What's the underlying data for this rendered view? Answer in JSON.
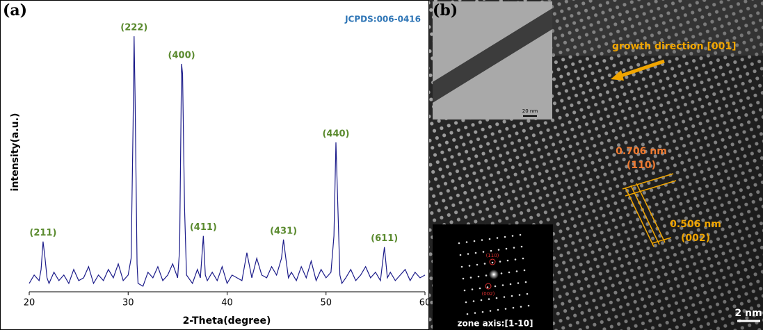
{
  "chart_data": {
    "type": "line",
    "panel_label": "(a)",
    "annotation": "JCPDS:006-0416",
    "xlabel": "2-Theta(degree)",
    "ylabel": "intensity(a.u.)",
    "xlim": [
      20,
      60
    ],
    "xticks": [
      20,
      30,
      40,
      50,
      60
    ],
    "ylim": [
      0,
      100
    ],
    "color": "#1c1c8a",
    "x": [
      20,
      20.5,
      21,
      21.2,
      21.4,
      21.6,
      21.8,
      22,
      22.5,
      23,
      23.5,
      24,
      24.5,
      25,
      25.5,
      26,
      26.5,
      27,
      27.5,
      28,
      28.5,
      29,
      29.5,
      30,
      30.3,
      30.5,
      30.6,
      30.7,
      30.9,
      31,
      31.5,
      32,
      32.5,
      33,
      33.5,
      34,
      34.5,
      35,
      35.2,
      35.4,
      35.5,
      35.7,
      35.9,
      36.5,
      37,
      37.3,
      37.6,
      37.8,
      38,
      38.5,
      39,
      39.5,
      40,
      40.5,
      41,
      41.5,
      42,
      42.5,
      43,
      43.5,
      44,
      44.5,
      45,
      45.5,
      45.7,
      45.9,
      46.2,
      46.5,
      47,
      47.5,
      48,
      48.5,
      49,
      49.5,
      50,
      50.5,
      50.8,
      51,
      51.2,
      51.4,
      51.6,
      52,
      52.5,
      53,
      53.5,
      54,
      54.5,
      55,
      55.5,
      55.9,
      56.2,
      56.5,
      57,
      57.5,
      58,
      58.5,
      59,
      59.5,
      60
    ],
    "values": [
      3,
      6,
      4,
      8,
      18,
      12,
      5,
      3,
      7,
      4,
      6,
      3,
      8,
      4,
      5,
      9,
      3,
      6,
      4,
      8,
      5,
      10,
      4,
      6,
      12,
      60,
      91.5,
      70,
      10,
      3,
      2,
      7,
      5,
      9,
      4,
      6,
      10,
      5,
      15,
      81.6,
      78,
      30,
      6,
      3,
      8,
      5,
      20,
      6,
      4,
      7,
      4,
      9,
      3,
      6,
      5,
      4,
      14,
      5,
      12,
      6,
      5,
      9,
      6,
      12,
      18.7,
      13,
      5,
      7,
      4,
      9,
      5,
      11,
      4,
      8,
      5,
      7,
      20,
      53.5,
      30,
      6,
      3,
      5,
      8,
      4,
      6,
      9,
      5,
      7,
      4,
      16,
      5,
      7,
      4,
      6,
      8,
      4,
      7,
      5,
      6
    ],
    "peak_labels": [
      {
        "text": "(211)",
        "x": 21.4,
        "y": 18
      },
      {
        "text": "(222)",
        "x": 30.6,
        "y": 91.5
      },
      {
        "text": "(400)",
        "x": 35.4,
        "y": 81.6
      },
      {
        "text": "(411)",
        "x": 37.6,
        "y": 20
      },
      {
        "text": "(431)",
        "x": 45.7,
        "y": 18.7
      },
      {
        "text": "(440)",
        "x": 51,
        "y": 53.5
      },
      {
        "text": "(611)",
        "x": 55.9,
        "y": 16
      }
    ]
  },
  "panel_b": {
    "label": "(b)",
    "growth_direction": "growth direction [001]",
    "spacing_110": {
      "distance": "0.706 nm",
      "plane": "(110)"
    },
    "spacing_002": {
      "distance": "0.506 nm",
      "plane": "(002)"
    },
    "scale_bar": "2 nm",
    "inset_scale_bar": "20 nm",
    "saed_spots": [
      "(110)",
      "(002)"
    ],
    "zone_axis": "zone axis:[1-10]"
  }
}
